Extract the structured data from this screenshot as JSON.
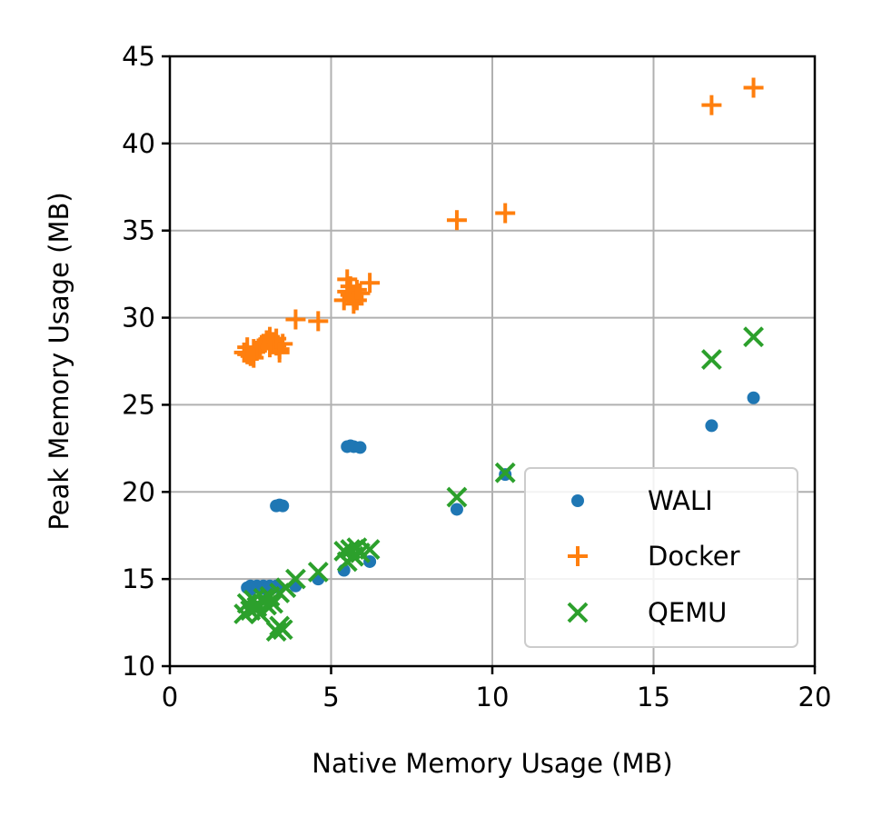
{
  "chart_data": {
    "type": "scatter",
    "title": "",
    "xlabel": "Native Memory Usage (MB)",
    "ylabel": "Peak Memory Usage (MB)",
    "xlim": [
      0,
      20
    ],
    "ylim": [
      10,
      45
    ],
    "xticks": [
      0,
      5,
      10,
      15,
      20
    ],
    "yticks": [
      10,
      15,
      20,
      25,
      30,
      35,
      40,
      45
    ],
    "xtick_labels": [
      "0",
      "5",
      "10",
      "15",
      "20"
    ],
    "ytick_labels": [
      "10",
      "15",
      "20",
      "25",
      "30",
      "35",
      "40",
      "45"
    ],
    "grid": true,
    "legend_position": "lower-right",
    "series": [
      {
        "name": "WALI",
        "marker": "dot",
        "color": "#1f77b4",
        "points": [
          [
            2.4,
            14.5
          ],
          [
            2.5,
            14.6
          ],
          [
            2.6,
            14.5
          ],
          [
            2.7,
            14.6
          ],
          [
            2.8,
            14.5
          ],
          [
            2.9,
            14.6
          ],
          [
            3.0,
            14.5
          ],
          [
            3.1,
            14.6
          ],
          [
            3.2,
            14.5
          ],
          [
            3.3,
            14.6
          ],
          [
            3.4,
            14.5
          ],
          [
            2.5,
            14.4
          ],
          [
            3.0,
            14.4
          ],
          [
            3.3,
            19.2
          ],
          [
            3.4,
            19.25
          ],
          [
            3.5,
            19.2
          ],
          [
            3.9,
            14.6
          ],
          [
            4.6,
            15.0
          ],
          [
            5.4,
            15.5
          ],
          [
            5.5,
            22.6
          ],
          [
            5.6,
            22.65
          ],
          [
            5.7,
            22.6
          ],
          [
            5.9,
            22.55
          ],
          [
            6.2,
            16.0
          ],
          [
            8.9,
            19.0
          ],
          [
            10.4,
            21.0
          ],
          [
            16.8,
            23.8
          ],
          [
            18.1,
            25.4
          ]
        ]
      },
      {
        "name": "Docker",
        "marker": "plus",
        "color": "#ff7f0e",
        "points": [
          [
            2.3,
            28.0
          ],
          [
            2.4,
            28.3
          ],
          [
            2.5,
            27.8
          ],
          [
            2.6,
            28.2
          ],
          [
            2.4,
            27.9
          ],
          [
            2.7,
            28.1
          ],
          [
            2.8,
            28.3
          ],
          [
            2.9,
            28.5
          ],
          [
            3.0,
            28.7
          ],
          [
            3.1,
            28.9
          ],
          [
            3.2,
            28.6
          ],
          [
            3.3,
            28.4
          ],
          [
            3.4,
            28.2
          ],
          [
            3.5,
            28.5
          ],
          [
            3.1,
            28.3
          ],
          [
            3.3,
            28.8
          ],
          [
            2.6,
            27.7
          ],
          [
            3.4,
            28.0
          ],
          [
            3.9,
            29.9
          ],
          [
            4.6,
            29.8
          ],
          [
            5.4,
            31.0
          ],
          [
            5.5,
            31.5
          ],
          [
            5.6,
            31.3
          ],
          [
            5.7,
            31.2
          ],
          [
            5.8,
            31.0
          ],
          [
            5.9,
            31.4
          ],
          [
            5.5,
            32.2
          ],
          [
            5.6,
            31.8
          ],
          [
            5.7,
            30.8
          ],
          [
            5.8,
            31.6
          ],
          [
            6.2,
            32.0
          ],
          [
            8.9,
            35.6
          ],
          [
            10.4,
            36.0
          ],
          [
            16.8,
            42.2
          ],
          [
            18.1,
            43.2
          ]
        ]
      },
      {
        "name": "QEMU",
        "marker": "x",
        "color": "#2ca02c",
        "points": [
          [
            2.3,
            13.0
          ],
          [
            2.4,
            13.6
          ],
          [
            2.5,
            13.2
          ],
          [
            2.6,
            13.8
          ],
          [
            2.7,
            13.4
          ],
          [
            2.8,
            13.0
          ],
          [
            2.9,
            13.9
          ],
          [
            3.0,
            13.5
          ],
          [
            3.1,
            14.0
          ],
          [
            3.2,
            13.6
          ],
          [
            3.3,
            12.0
          ],
          [
            3.4,
            12.3
          ],
          [
            3.5,
            12.1
          ],
          [
            3.4,
            14.2
          ],
          [
            3.6,
            14.5
          ],
          [
            3.9,
            15.0
          ],
          [
            4.6,
            15.4
          ],
          [
            5.4,
            16.6
          ],
          [
            5.5,
            16.0
          ],
          [
            5.6,
            16.7
          ],
          [
            5.7,
            16.3
          ],
          [
            5.8,
            16.8
          ],
          [
            5.9,
            16.5
          ],
          [
            6.2,
            16.7
          ],
          [
            8.9,
            19.7
          ],
          [
            10.4,
            21.1
          ],
          [
            16.8,
            27.6
          ],
          [
            18.1,
            28.9
          ]
        ]
      }
    ]
  }
}
